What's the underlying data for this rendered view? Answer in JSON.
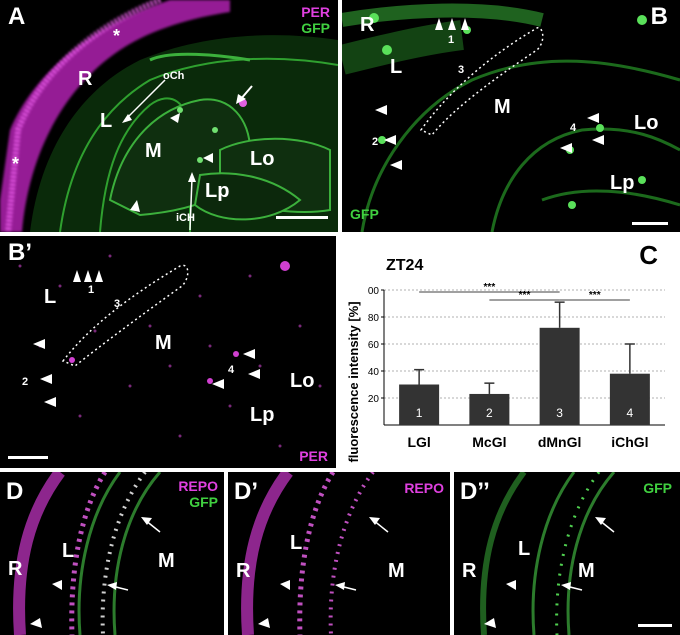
{
  "colors": {
    "per": "#e040e0",
    "gfp": "#40d040",
    "repo": "#e040e0",
    "bar": "#333333"
  },
  "panelA": {
    "letter": "A",
    "ch1": "PER",
    "ch2": "GFP",
    "R": "R",
    "L": "L",
    "M": "M",
    "Lo": "Lo",
    "Lp": "Lp",
    "oCh": "oCh",
    "iCH": "iCH",
    "star": "*"
  },
  "panelB": {
    "letter": "B",
    "R": "R",
    "L": "L",
    "M": "M",
    "Lo": "Lo",
    "Lp": "Lp",
    "n1": "1",
    "n2": "2",
    "n3": "3",
    "n4": "4",
    "ch": "GFP"
  },
  "panelB2": {
    "letter": "B’",
    "L": "L",
    "M": "M",
    "Lo": "Lo",
    "Lp": "Lp",
    "n1": "1",
    "n2": "2",
    "n3": "3",
    "n4": "4",
    "ch": "PER"
  },
  "panelD": {
    "letter": "D",
    "ch1": "REPO",
    "ch2": "GFP",
    "R": "R",
    "L": "L",
    "M": "M"
  },
  "panelD2": {
    "letter": "D’",
    "ch": "REPO",
    "R": "R",
    "L": "L",
    "M": "M"
  },
  "panelD3": {
    "letter": "D’’",
    "ch": "GFP",
    "R": "R",
    "L": "L",
    "M": "M"
  },
  "chart_data": {
    "type": "bar",
    "panel_letter": "C",
    "title": "ZT24",
    "categories": [
      "LGl",
      "McGl",
      "dMnGl",
      "iChGl"
    ],
    "bar_numbers": [
      "1",
      "2",
      "3",
      "4"
    ],
    "values": [
      30,
      23,
      72,
      38
    ],
    "errors": [
      11,
      8,
      19,
      22
    ],
    "ylabel": "fluorescence intensity [%]",
    "ylim": [
      0,
      100
    ],
    "yticks": [
      "20",
      "40",
      "60",
      "80",
      "00"
    ],
    "grid": true,
    "significance": [
      {
        "from": "LGl",
        "to": "dMnGl",
        "label": "***"
      },
      {
        "from": "McGl",
        "to": "dMnGl",
        "label": "***"
      },
      {
        "from": "dMnGl",
        "to": "iChGl",
        "label": "***"
      }
    ]
  }
}
